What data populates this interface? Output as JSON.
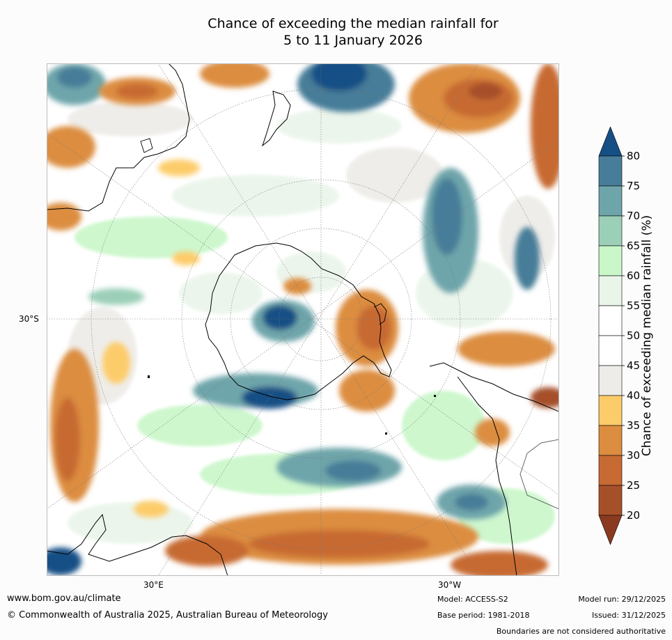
{
  "title_line1": "Chance of exceeding the median rainfall for",
  "title_line2": "5 to 11 January 2026",
  "map": {
    "lat_label": "30°S",
    "lon_label_left": "30°E",
    "lon_label_right": "30°W"
  },
  "colorbar": {
    "title": "Chance of exceeding median rainfall (%)",
    "ticks": [
      "20",
      "25",
      "30",
      "35",
      "40",
      "45",
      "50",
      "55",
      "60",
      "65",
      "70",
      "75",
      "80"
    ],
    "colors": [
      "#a6502a",
      "#c76a33",
      "#dc8d40",
      "#fdcc6a",
      "#eeece8",
      "#ffffff",
      "#ffffff",
      "#eaf5ea",
      "#c9f7c9",
      "#9bcfb8",
      "#6ea5aa",
      "#477d98"
    ],
    "under_color": "#8b3a20",
    "over_color": "#154f85"
  },
  "footer": {
    "website": "www.bom.gov.au/climate",
    "copyright": "© Commonwealth of Australia 2025, Australian Bureau of Meteorology",
    "model": "Model: ACCESS-S2",
    "base_period": "Base period: 1981-2018",
    "model_run": "Model run: 29/12/2025",
    "issued": "Issued: 31/12/2025",
    "disclaimer": "Boundaries are not considered authoritative"
  }
}
